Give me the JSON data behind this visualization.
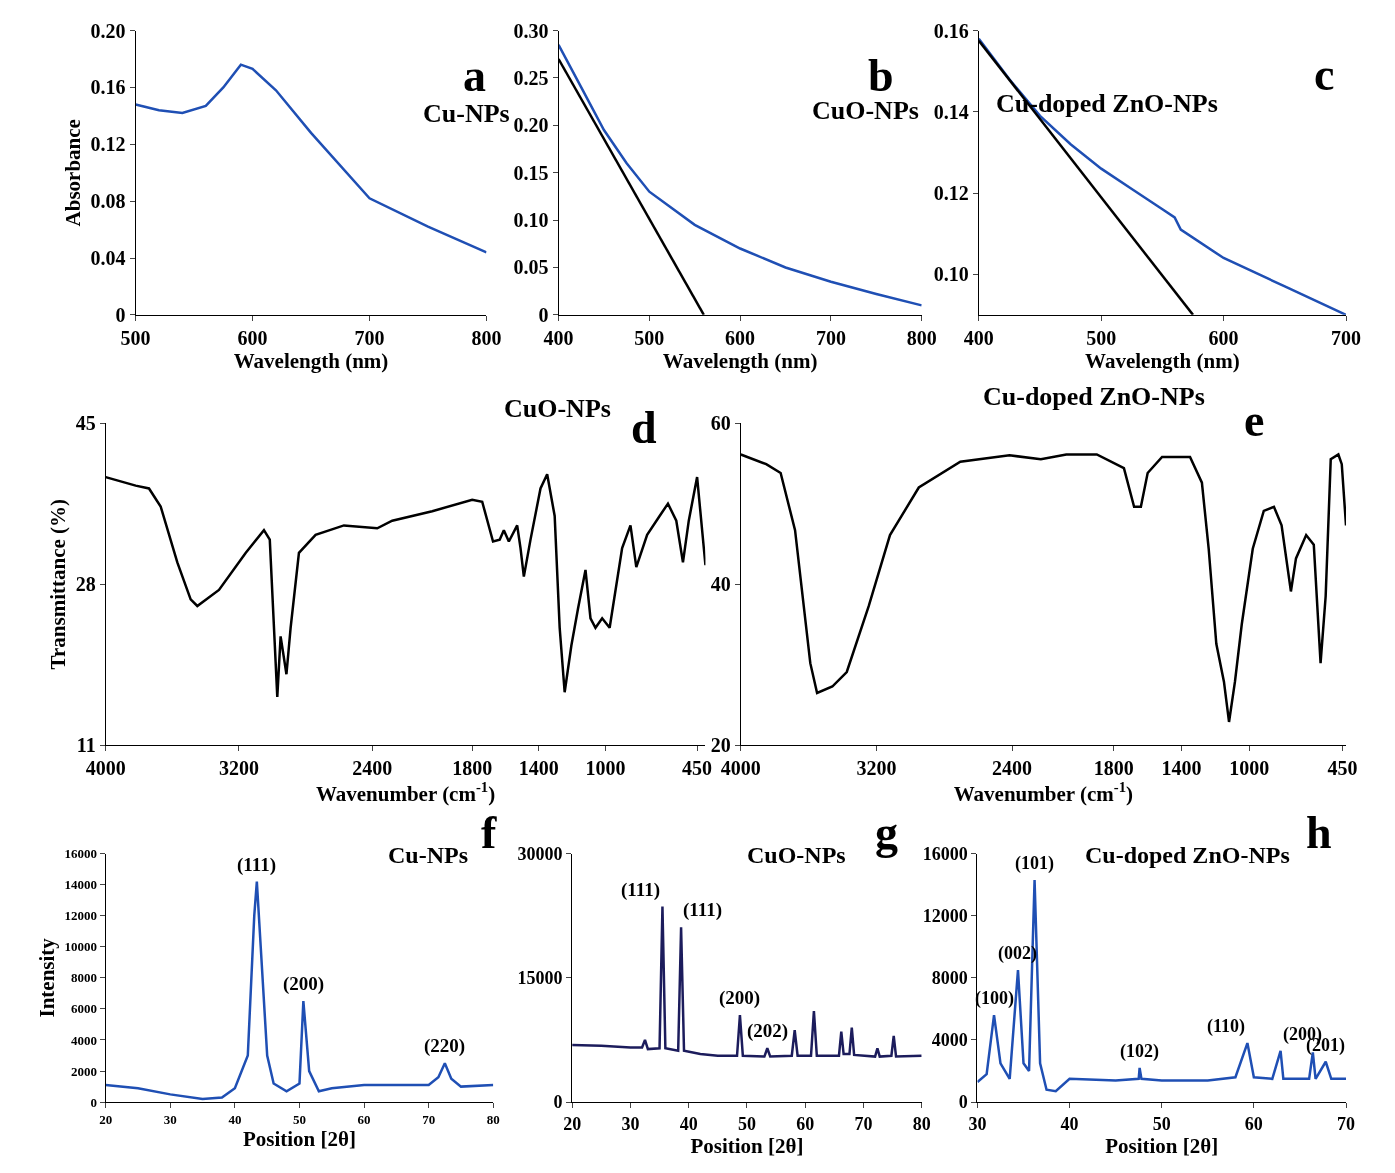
{
  "chart_data": [
    {
      "type": "line",
      "title": "Cu-NPs",
      "annotations": [
        "a"
      ],
      "xlabel": "Wavelength (nm)",
      "ylabel": "Absorbance",
      "xlim": [
        500,
        800
      ],
      "xticks": [
        500,
        600,
        700,
        800
      ],
      "ylim": [
        0,
        0.2
      ],
      "yticks": [
        0,
        0.04,
        0.08,
        0.12,
        0.16,
        {
          "value": 0.2,
          "label": "0.20"
        }
      ],
      "series": [
        {
          "color": "#1f4fb4",
          "x": [
            500,
            520,
            540,
            560,
            575,
            590,
            600,
            620,
            650,
            700,
            750,
            800
          ],
          "values": [
            0.148,
            0.144,
            0.142,
            0.147,
            0.16,
            0.176,
            0.173,
            0.158,
            0.128,
            0.082,
            0.062,
            0.044
          ]
        }
      ]
    },
    {
      "type": "line",
      "title": "CuO-NPs",
      "annotations": [
        "b"
      ],
      "xlabel": "Wavelength (nm)",
      "xlim": [
        400,
        800
      ],
      "xticks": [
        400,
        500,
        600,
        700,
        800
      ],
      "ylim": [
        0,
        0.3
      ],
      "yticks": [
        0,
        0.05,
        {
          "value": 0.1,
          "label": "0.10"
        },
        0.15,
        {
          "value": 0.2,
          "label": "0.20"
        },
        0.25,
        {
          "value": 0.3,
          "label": "0.30"
        }
      ],
      "series": [
        {
          "color": "#1f4fb4",
          "x": [
            400,
            425,
            450,
            475,
            500,
            550,
            600,
            650,
            700,
            750,
            800
          ],
          "values": [
            0.285,
            0.24,
            0.195,
            0.16,
            0.13,
            0.095,
            0.07,
            0.05,
            0.035,
            0.022,
            0.01
          ]
        },
        {
          "color": "#000000",
          "x": [
            400,
            560
          ],
          "values": [
            0.27,
            0
          ]
        }
      ]
    },
    {
      "type": "line",
      "title": "Cu-doped ZnO-NPs",
      "annotations": [
        "c"
      ],
      "xlabel": "Wavelength (nm)",
      "xlim": [
        400,
        700
      ],
      "xticks": [
        400,
        500,
        600,
        700
      ],
      "ylim": [
        0.09,
        0.16
      ],
      "yticks": [
        {
          "value": 0.1,
          "label": "0.10"
        },
        0.12,
        0.14,
        0.16
      ],
      "series": [
        {
          "color": "#1f4fb4",
          "x": [
            400,
            425,
            450,
            475,
            500,
            525,
            550,
            560,
            565,
            600,
            650,
            700
          ],
          "values": [
            0.158,
            0.148,
            0.139,
            0.132,
            0.126,
            0.121,
            0.116,
            0.114,
            0.111,
            0.104,
            0.097,
            0.09
          ]
        },
        {
          "color": "#000000",
          "x": [
            400,
            575
          ],
          "values": [
            0.1575,
            0.09
          ]
        }
      ]
    },
    {
      "type": "line",
      "title": "CuO-NPs",
      "annotations": [
        "d"
      ],
      "xlabel": "Wavenumber (cm$^{-1}$)",
      "ylabel": "Transmittance (%)",
      "xlim": [
        4000,
        400
      ],
      "xticks": [
        4000,
        3200,
        2400,
        1800,
        1400,
        1000,
        450
      ],
      "ylim": [
        11,
        45
      ],
      "yticks": [
        11,
        28,
        45
      ],
      "series": [
        {
          "color": "#000000",
          "x": [
            4000,
            3820,
            3740,
            3670,
            3570,
            3490,
            3450,
            3320,
            3160,
            3050,
            3015,
            2970,
            2950,
            2915,
            2890,
            2840,
            2740,
            2570,
            2370,
            2280,
            2040,
            1800,
            1740,
            1675,
            1635,
            1610,
            1580,
            1530,
            1510,
            1490,
            1450,
            1390,
            1350,
            1305,
            1275,
            1245,
            1205,
            1165,
            1120,
            1090,
            1060,
            1020,
            975,
            900,
            850,
            815,
            750,
            675,
            625,
            575,
            535,
            500,
            450,
            400
          ],
          "values": [
            39.3,
            38.4,
            38.1,
            36.2,
            30.3,
            26.4,
            25.7,
            27.4,
            31.3,
            33.7,
            32.7,
            16.1,
            22.5,
            18.5,
            23.4,
            31.3,
            33.2,
            34.2,
            33.9,
            34.7,
            35.7,
            36.9,
            36.7,
            32.5,
            32.7,
            33.7,
            32.5,
            34.2,
            31.8,
            28.8,
            32.7,
            38.1,
            39.6,
            35.2,
            23.4,
            16.6,
            21.5,
            25.4,
            29.5,
            24.4,
            23.4,
            24.4,
            23.4,
            31.8,
            34.2,
            29.8,
            33.2,
            35.2,
            36.5,
            34.7,
            30.3,
            34.7,
            39.3,
            30
          ]
        }
      ]
    },
    {
      "type": "line",
      "title": "Cu-doped ZnO-NPs",
      "annotations": [
        "e"
      ],
      "xlabel": "Wavenumber (cm$^{-1}$)",
      "xlim": [
        4000,
        430
      ],
      "xticks": [
        4000,
        3200,
        2400,
        1800,
        1400,
        1000,
        450
      ],
      "ylim": [
        20,
        60
      ],
      "yticks": [
        20,
        40,
        60
      ],
      "series": [
        {
          "color": "#000000",
          "x": [
            4000,
            3850,
            3765,
            3680,
            3590,
            3550,
            3460,
            3375,
            3245,
            3120,
            2950,
            2705,
            2415,
            2230,
            2080,
            1900,
            1740,
            1680,
            1640,
            1600,
            1515,
            1350,
            1280,
            1240,
            1195,
            1150,
            1120,
            1085,
            1045,
            980,
            915,
            855,
            810,
            755,
            725,
            665,
            620,
            580,
            550,
            520,
            475,
            455,
            430
          ],
          "values": [
            56.1,
            54.9,
            53.8,
            46.7,
            30.2,
            26.5,
            27.3,
            29.1,
            37.3,
            46.1,
            52.0,
            55.2,
            56.0,
            55.5,
            56.1,
            56.1,
            54.4,
            49.6,
            49.6,
            53.8,
            55.8,
            55.8,
            52.6,
            44.4,
            32.6,
            27.9,
            22.9,
            27.9,
            35.0,
            44.4,
            49.1,
            49.6,
            47.3,
            39.1,
            43.2,
            46.1,
            44.9,
            30.2,
            38.5,
            55.5,
            56.1,
            54.9,
            47.3
          ]
        }
      ]
    },
    {
      "type": "line",
      "title": "Cu-NPs",
      "annotations": [
        "f",
        {
          "text": "(111)",
          "x": 43.4,
          "y": 14200
        },
        {
          "text": "(200)",
          "x": 50.6,
          "y": 6500
        },
        {
          "text": "(220)",
          "x": 72.5,
          "y": 2500
        }
      ],
      "xlabel": "Position [2θ]",
      "ylabel": "Intensity",
      "xlim": [
        20,
        80
      ],
      "xticks": [
        20,
        30,
        40,
        50,
        60,
        70,
        80
      ],
      "ylim": [
        0,
        16000
      ],
      "yticks": [
        0,
        2000,
        4000,
        6000,
        8000,
        10000,
        12000,
        14000,
        16000
      ],
      "series": [
        {
          "color": "#1f4fb4",
          "x": [
            20,
            25,
            30,
            35,
            38,
            40,
            42,
            43,
            43.4,
            44,
            45,
            46,
            48,
            50,
            50.6,
            51.5,
            53,
            55,
            60,
            70,
            71.5,
            72.5,
            73.5,
            75,
            80
          ],
          "values": [
            1100,
            900,
            500,
            200,
            300,
            900,
            3000,
            12000,
            14200,
            10000,
            3000,
            1200,
            700,
            1200,
            6500,
            2000,
            700,
            900,
            1100,
            1100,
            1600,
            2500,
            1500,
            1000,
            1100
          ]
        }
      ]
    },
    {
      "type": "line",
      "title": "CuO-NPs",
      "annotations": [
        "g",
        {
          "text": "(111)",
          "x": 35.5,
          "y": 23600
        },
        {
          "text": "(111)",
          "x": 38.7,
          "y": 21100
        },
        {
          "text": "(200)",
          "x": 48.8,
          "y": 10500
        },
        {
          "text": "(202)",
          "x": 53.5,
          "y": 6500
        }
      ],
      "xlabel": "Position [2θ]",
      "xlim": [
        20,
        80
      ],
      "xticks": [
        20,
        30,
        40,
        50,
        60,
        70,
        80
      ],
      "ylim": [
        0,
        30000
      ],
      "yticks": [
        0,
        15000,
        30000
      ],
      "series": [
        {
          "color": "#1c1c5c",
          "x": [
            20,
            25,
            30,
            32,
            32.5,
            33,
            35,
            35.5,
            36,
            38.2,
            38.7,
            39.2,
            42,
            45,
            48.3,
            48.8,
            49.3,
            53,
            53.5,
            54,
            57.7,
            58.2,
            58.7,
            61,
            61.5,
            62,
            65.8,
            66.2,
            66.6,
            67.6,
            68,
            68.4,
            72,
            72.4,
            72.8,
            74.8,
            75.2,
            75.6,
            80
          ],
          "values": [
            6900,
            6800,
            6600,
            6600,
            7500,
            6400,
            6500,
            23600,
            6500,
            6200,
            21100,
            6200,
            5800,
            5600,
            5600,
            10500,
            5600,
            5500,
            6500,
            5500,
            5600,
            8700,
            5600,
            5600,
            11000,
            5600,
            5600,
            8500,
            5800,
            5800,
            9000,
            5700,
            5500,
            6500,
            5500,
            5600,
            8000,
            5500,
            5600
          ]
        }
      ]
    },
    {
      "type": "line",
      "title": "Cu-doped ZnO-NPs",
      "annotations": [
        "h",
        {
          "text": "(100)",
          "x": 31.8,
          "y": 5600
        },
        {
          "text": "(002)",
          "x": 34.4,
          "y": 8500
        },
        {
          "text": "(101)",
          "x": 36.2,
          "y": 14300
        },
        {
          "text": "(102)",
          "x": 47.6,
          "y": 2200
        },
        {
          "text": "(110)",
          "x": 59.3,
          "y": 3800
        },
        {
          "text": "(200)",
          "x": 62.9,
          "y": 3300
        },
        {
          "text": "(201)",
          "x": 67.8,
          "y": 2600
        }
      ],
      "xlabel": "Position [2θ]",
      "xlim": [
        30,
        70
      ],
      "xticks": [
        30,
        40,
        50,
        60,
        70
      ],
      "ylim": [
        0,
        16000
      ],
      "yticks": [
        0,
        4000,
        8000,
        12000,
        16000
      ],
      "series": [
        {
          "color": "#1f4fb4",
          "x": [
            30,
            31,
            31.8,
            32.5,
            33.5,
            34.4,
            35,
            35.6,
            36.2,
            36.8,
            37.5,
            38.5,
            40,
            45,
            47.5,
            47.6,
            47.8,
            50,
            55,
            58,
            59.3,
            60,
            62,
            62.9,
            63.2,
            66,
            66.4,
            66.7,
            67.8,
            68.4,
            70
          ],
          "values": [
            1300,
            1800,
            5600,
            2500,
            1500,
            8500,
            2500,
            2000,
            14300,
            2500,
            800,
            700,
            1500,
            1400,
            1500,
            2200,
            1500,
            1400,
            1400,
            1600,
            3800,
            1600,
            1500,
            3300,
            1500,
            1500,
            3200,
            1500,
            2600,
            1500,
            1500
          ]
        }
      ]
    }
  ]
}
